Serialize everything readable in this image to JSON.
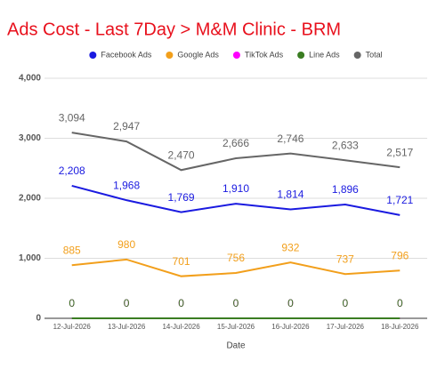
{
  "chart_data": {
    "type": "line",
    "title": "Ads Cost - Last 7Day > M&M Clinic - BRM",
    "x_label": "Date",
    "categories": [
      "12-Jul-2026",
      "13-Jul-2026",
      "14-Jul-2026",
      "15-Jul-2026",
      "16-Jul-2026",
      "17-Jul-2026",
      "18-Jul-2026"
    ],
    "series": [
      {
        "name": "Facebook Ads",
        "color": "#1a1ae0",
        "values": [
          2208,
          1968,
          1769,
          1910,
          1814,
          1896,
          1721
        ],
        "value_labels": [
          "2,208",
          "1,968",
          "1,769",
          "1,910",
          "1,814",
          "1,896",
          "1,721"
        ]
      },
      {
        "name": "Google Ads",
        "color": "#f29f1b",
        "values": [
          885,
          980,
          701,
          756,
          932,
          737,
          796
        ]
      },
      {
        "name": "TikTok Ads",
        "color": "#ff00ff",
        "values": [
          0,
          0,
          0,
          0,
          0,
          0,
          0
        ]
      },
      {
        "name": "Line Ads",
        "color": "#3a7d22",
        "values": [
          0,
          0,
          0,
          0,
          0,
          0,
          0
        ]
      },
      {
        "name": "Total",
        "color": "#666666",
        "values": [
          3094,
          2947,
          2470,
          2666,
          2746,
          2633,
          2517
        ],
        "value_labels": [
          "3,094",
          "2,947",
          "2,470",
          "2,666",
          "2,746",
          "2,633",
          "2,517"
        ]
      }
    ],
    "ylim": [
      0,
      4000
    ],
    "yticks": [
      0,
      {
        "value": 1000,
        "label": "1,000"
      },
      {
        "value": 2000,
        "label": "2,000"
      },
      {
        "value": 3000,
        "label": "3,000"
      },
      {
        "value": 4000,
        "label": "4,000"
      }
    ],
    "grid": true,
    "legend": "top"
  }
}
